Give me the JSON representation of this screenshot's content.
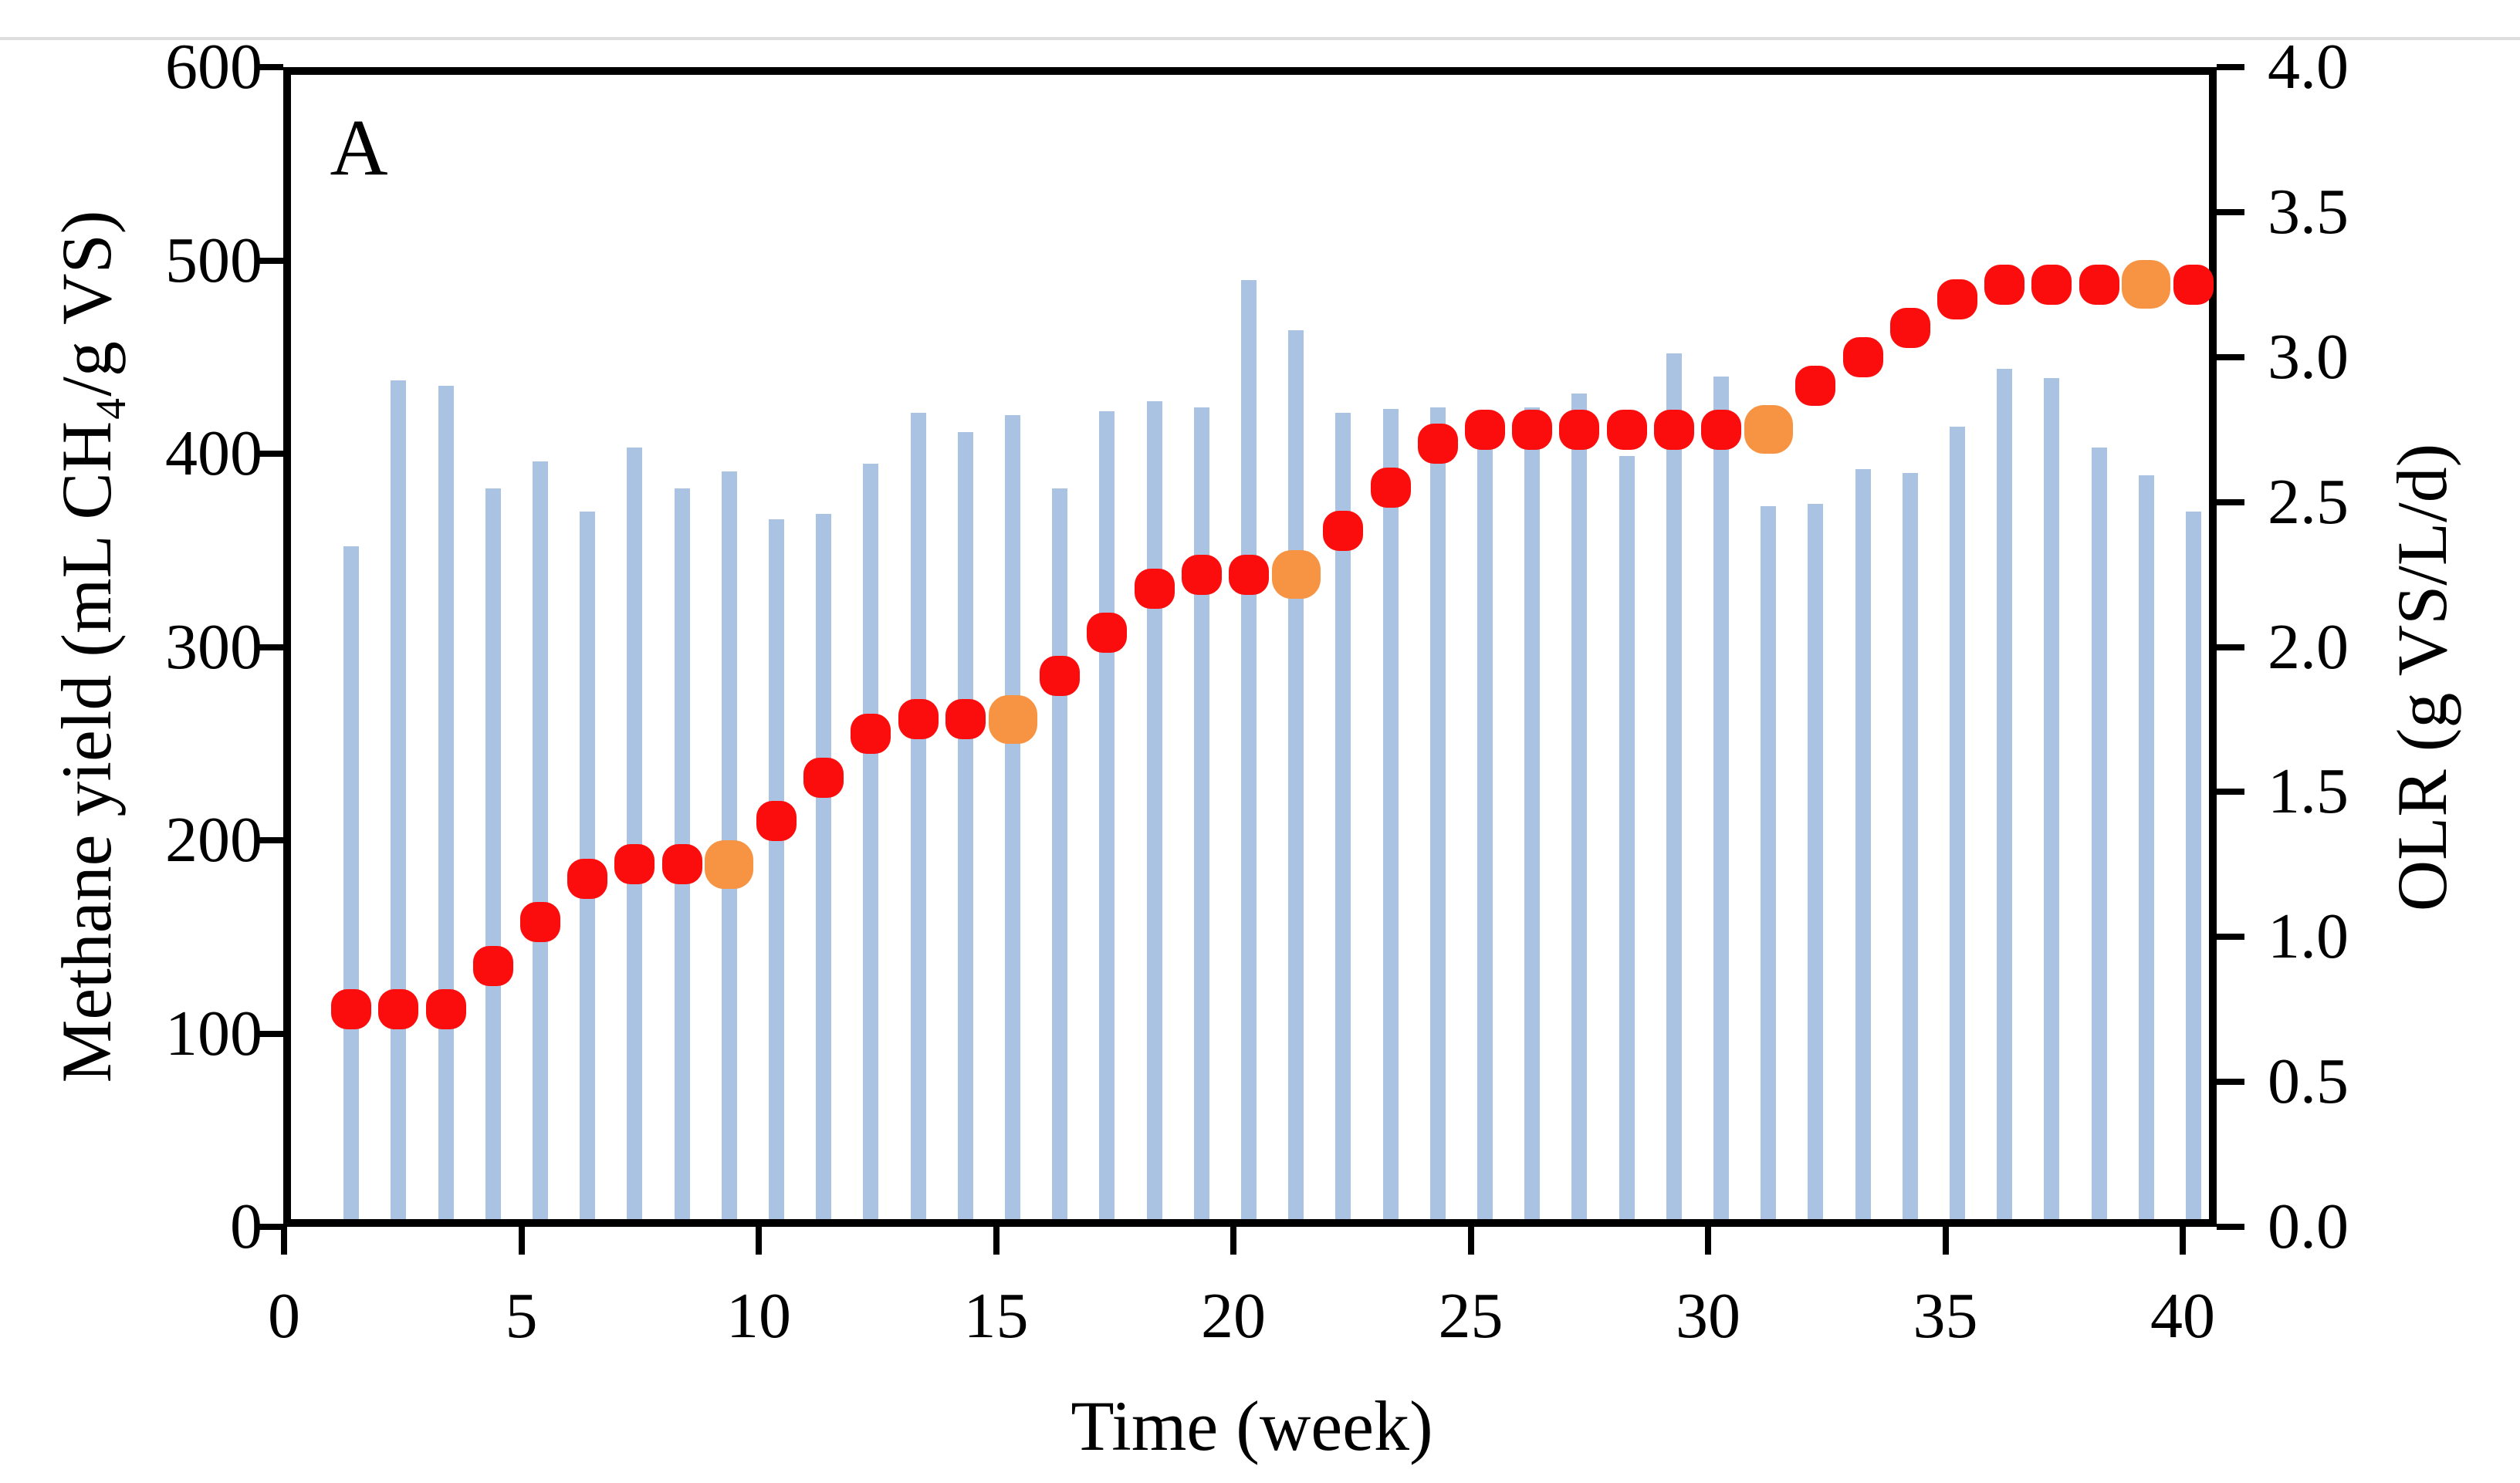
{
  "panel_label": "A",
  "chart_data": {
    "type": "combo-bar-scatter",
    "panel_label": "A",
    "x_label": "Time (week)",
    "x_axis": {
      "ticks": [
        0,
        5,
        10,
        15,
        20,
        25,
        30,
        35,
        40
      ],
      "range": [
        0,
        40.8
      ]
    },
    "left_axis": {
      "label": "Methane yield (mL CH₄/g VS)",
      "range": [
        0,
        600
      ],
      "ticks": [
        "600",
        "500",
        "400",
        "300",
        "200",
        "100",
        "0"
      ],
      "tick_values": [
        600,
        500,
        400,
        300,
        200,
        100,
        0
      ]
    },
    "right_axis": {
      "label": "OLR (g VS/L/d)",
      "range": [
        0,
        4
      ],
      "ticks": [
        "4.0",
        "3.5",
        "3.0",
        "2.5",
        "2.0",
        "1.5",
        "1.0",
        "0.5",
        "0.0"
      ],
      "tick_values": [
        4.0,
        3.5,
        3.0,
        2.5,
        2.0,
        1.5,
        1.0,
        0.5,
        0.0
      ]
    },
    "weeks": [
      1,
      2,
      3,
      4,
      5,
      6,
      7,
      8,
      9,
      10,
      11,
      12,
      13,
      14,
      15,
      16,
      17,
      18,
      19,
      20,
      21,
      22,
      23,
      24,
      25,
      26,
      27,
      28,
      29,
      30,
      31,
      32,
      33,
      34,
      35,
      36,
      37,
      38,
      39,
      40
    ],
    "series": [
      {
        "name": "Methane yield",
        "type": "bar",
        "axis": "left",
        "color": "#abc3e2",
        "values": [
          352,
          438,
          435,
          382,
          396,
          370,
          403,
          382,
          391,
          366,
          369,
          395,
          421,
          411,
          420,
          382,
          422,
          427,
          424,
          490,
          464,
          421,
          423,
          424,
          414,
          424,
          431,
          399,
          452,
          440,
          373,
          374,
          392,
          390,
          414,
          444,
          439,
          403,
          389,
          370
        ]
      },
      {
        "name": "OLR",
        "type": "scatter",
        "axis": "right",
        "color": "#fb0d0d",
        "highlight_color": "#f79443",
        "values": [
          0.75,
          0.75,
          0.75,
          0.9,
          1.05,
          1.2,
          1.25,
          1.25,
          1.25,
          1.4,
          1.55,
          1.7,
          1.75,
          1.75,
          1.75,
          1.9,
          2.05,
          2.2,
          2.25,
          2.25,
          2.25,
          2.4,
          2.55,
          2.7,
          2.75,
          2.75,
          2.75,
          2.75,
          2.75,
          2.75,
          2.75,
          2.9,
          3.0,
          3.1,
          3.2,
          3.25,
          3.25,
          3.25,
          3.25,
          3.25
        ],
        "highlight_weeks": [
          9,
          15,
          21,
          31,
          39
        ]
      }
    ]
  }
}
